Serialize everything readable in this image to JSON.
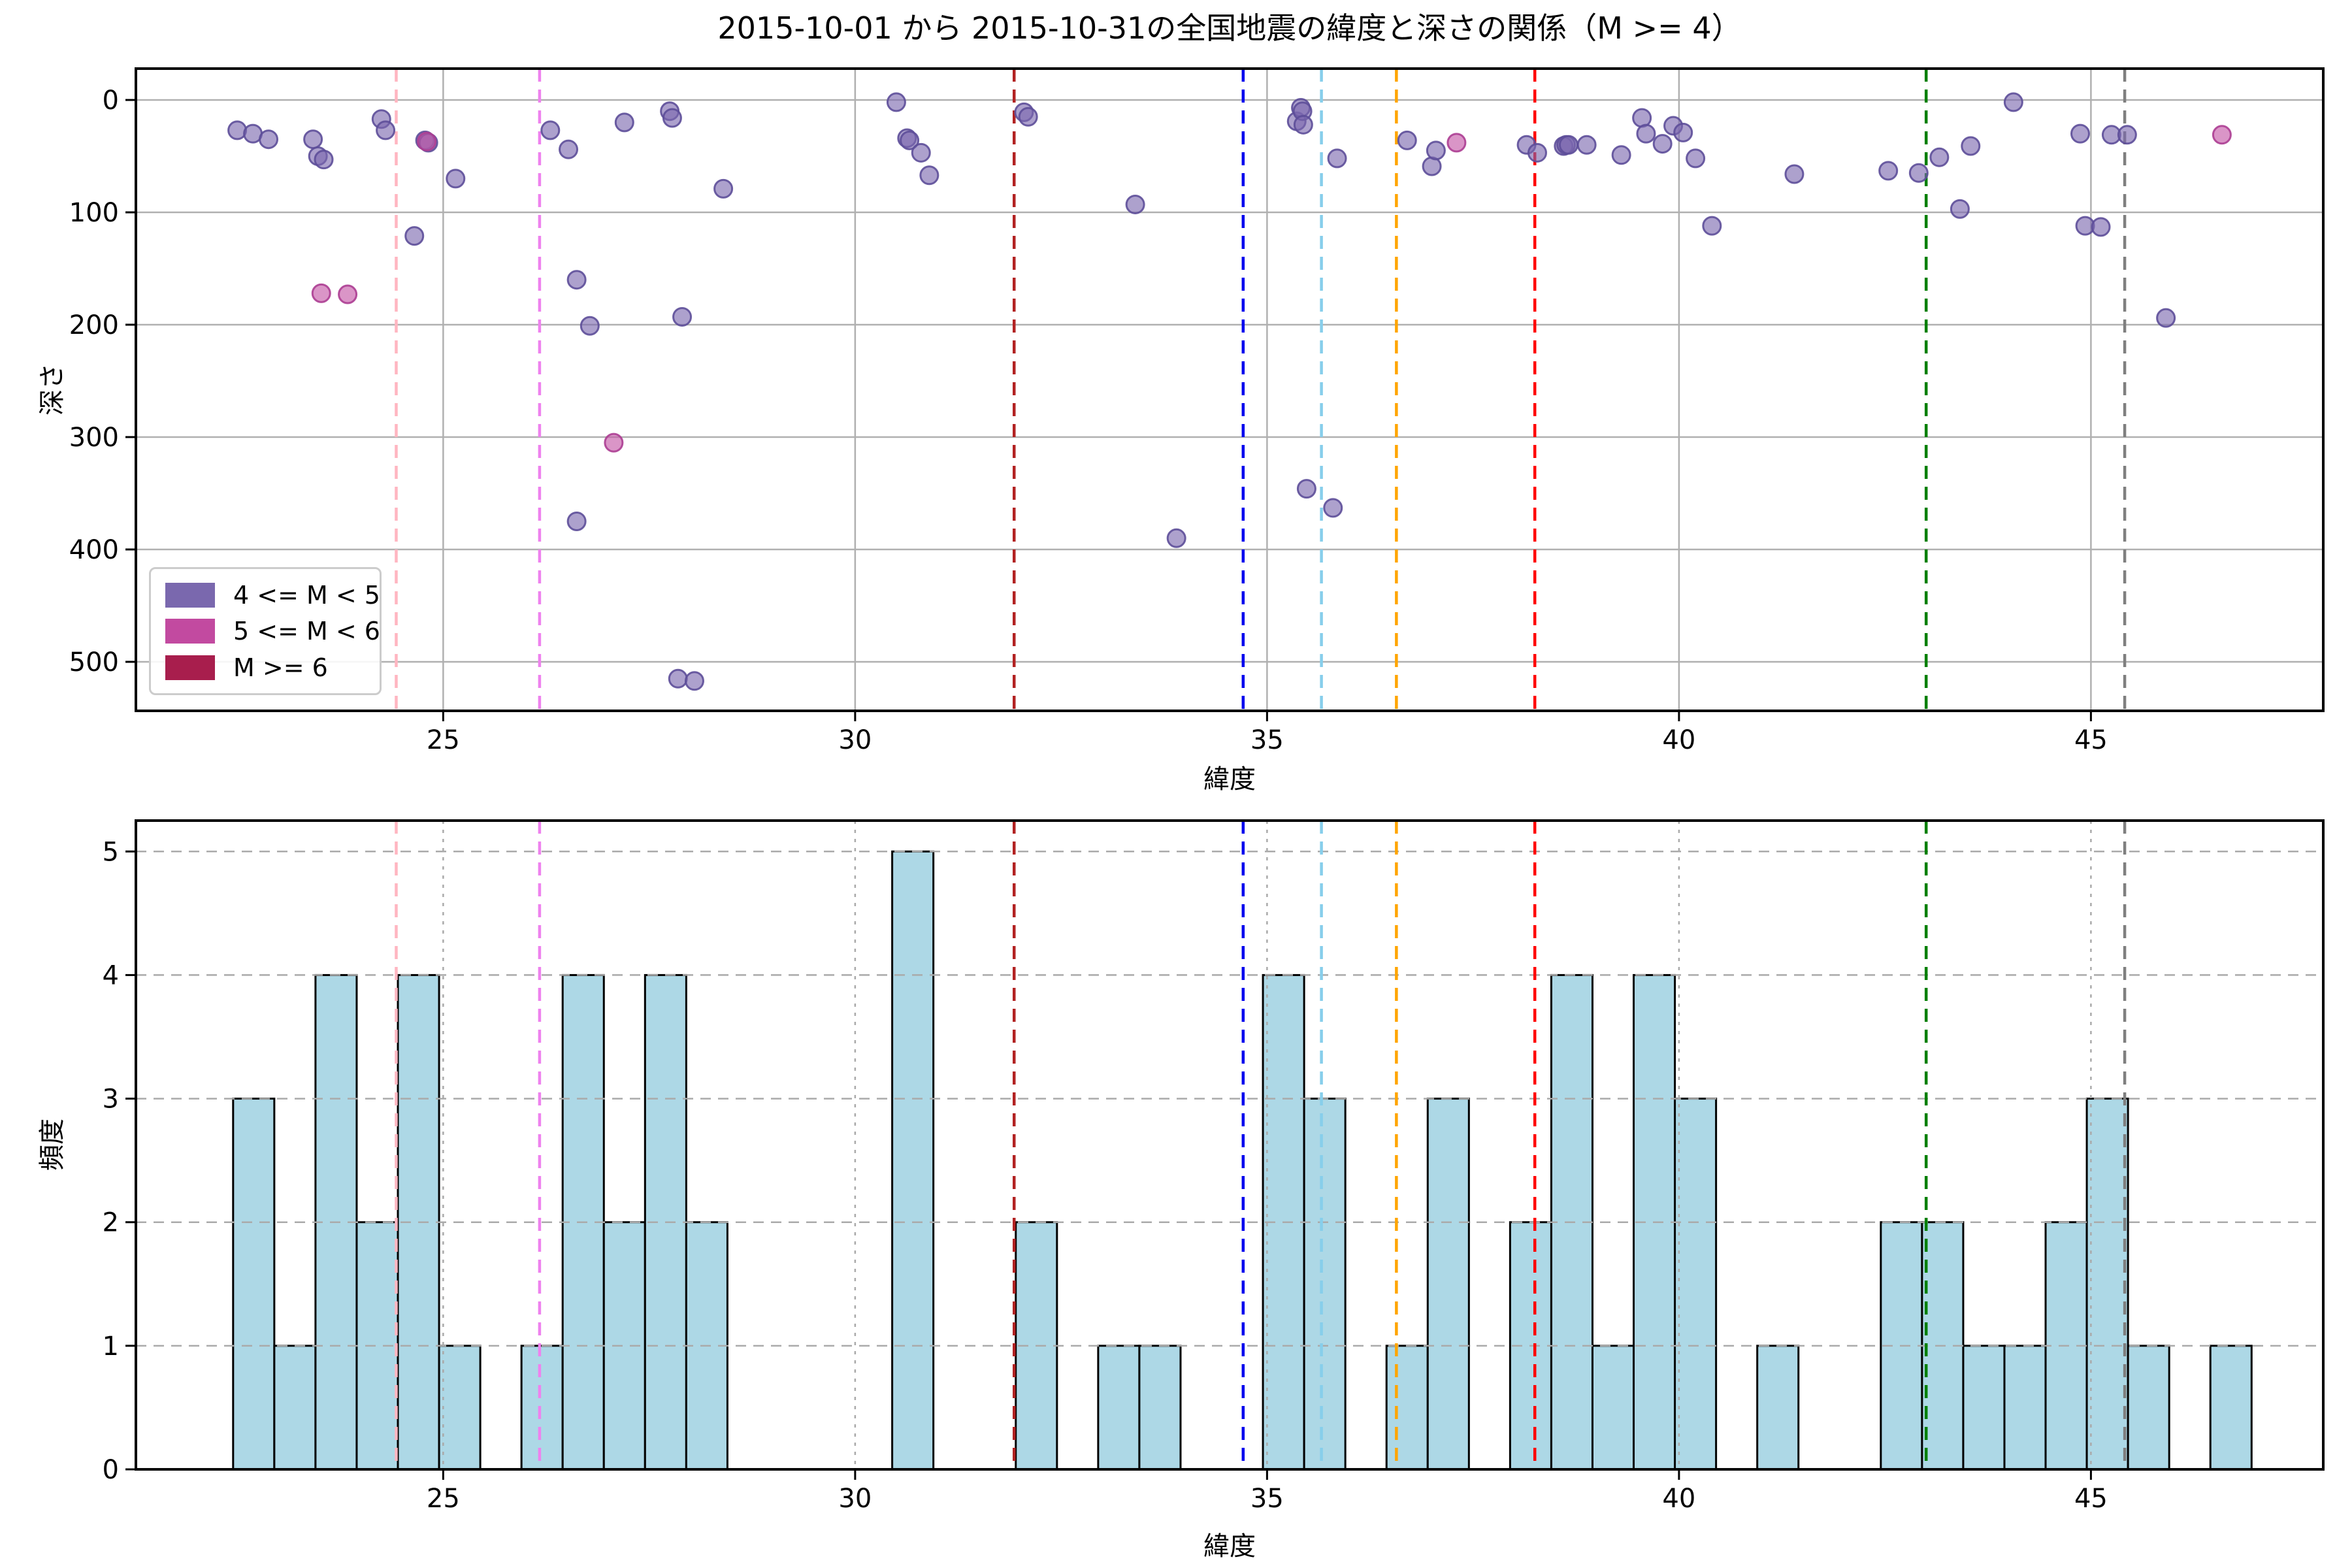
{
  "title": "2015-10-01 から 2015-10-31の全国地震の緯度と深さの関係（M >= 4）",
  "legend": {
    "items": [
      {
        "label": "4 <= M < 5",
        "color": "#7A68AE"
      },
      {
        "label": "5 <= M < 6",
        "color": "#C24AA0"
      },
      {
        "label": "M >= 6",
        "color": "#A81E4D"
      }
    ]
  },
  "colors": {
    "scatter_mag4_fill": "#7A68AE",
    "scatter_mag4_edge": "#5D4E99",
    "scatter_mag5_fill": "#C454A4",
    "scatter_mag5_edge": "#AC3D92",
    "scatter_mag6_fill": "#A81E4D",
    "bar_fill": "#ADD8E6",
    "bar_edge": "#000000",
    "grid": "#B0B0B0",
    "grid_bottom": "#AAAAAA"
  },
  "chart_data": [
    {
      "type": "scatter",
      "title": "2015-10-01 から 2015-10-31の全国地震の緯度と深さの関係（M >= 4）",
      "xlabel": "緯度",
      "ylabel": "深さ",
      "xlim": [
        21.27,
        47.82
      ],
      "ylim": [
        543.6,
        -27.9
      ],
      "y_axis_inverted": true,
      "grid": true,
      "xticks": [
        25,
        30,
        35,
        40,
        45
      ],
      "yticks": [
        0,
        100,
        200,
        300,
        400,
        500
      ],
      "legend_position": "lower left",
      "series": [
        {
          "name": "4 <= M < 5",
          "points": [
            [
              22.5,
              27
            ],
            [
              22.69,
              30
            ],
            [
              22.88,
              35
            ],
            [
              23.42,
              35
            ],
            [
              23.48,
              50
            ],
            [
              23.55,
              53
            ],
            [
              24.25,
              17
            ],
            [
              24.3,
              27
            ],
            [
              24.65,
              121
            ],
            [
              24.78,
              36
            ],
            [
              24.82,
              38
            ],
            [
              25.15,
              70
            ],
            [
              26.3,
              27
            ],
            [
              26.52,
              44
            ],
            [
              26.62,
              160
            ],
            [
              26.62,
              375
            ],
            [
              26.78,
              201
            ],
            [
              27.2,
              20
            ],
            [
              27.75,
              10
            ],
            [
              27.78,
              16
            ],
            [
              27.85,
              515
            ],
            [
              27.9,
              193
            ],
            [
              28.05,
              517
            ],
            [
              28.4,
              79
            ],
            [
              30.5,
              2
            ],
            [
              30.63,
              34
            ],
            [
              30.66,
              36
            ],
            [
              30.8,
              47
            ],
            [
              30.9,
              67
            ],
            [
              32.05,
              11
            ],
            [
              32.1,
              15
            ],
            [
              33.4,
              93
            ],
            [
              33.9,
              390
            ],
            [
              35.36,
              19
            ],
            [
              35.41,
              7
            ],
            [
              35.43,
              10
            ],
            [
              35.44,
              22
            ],
            [
              35.48,
              346
            ],
            [
              35.8,
              363
            ],
            [
              35.85,
              52
            ],
            [
              36.7,
              36
            ],
            [
              37.0,
              59
            ],
            [
              37.05,
              45
            ],
            [
              38.15,
              40
            ],
            [
              38.28,
              47
            ],
            [
              38.6,
              41
            ],
            [
              38.63,
              40
            ],
            [
              38.66,
              40
            ],
            [
              38.88,
              40
            ],
            [
              39.3,
              49
            ],
            [
              39.55,
              16
            ],
            [
              39.6,
              30
            ],
            [
              39.8,
              39
            ],
            [
              39.93,
              23
            ],
            [
              40.05,
              29
            ],
            [
              40.2,
              52
            ],
            [
              40.4,
              112
            ],
            [
              41.4,
              66
            ],
            [
              42.54,
              63
            ],
            [
              42.91,
              65
            ],
            [
              43.16,
              51
            ],
            [
              43.41,
              97
            ],
            [
              43.54,
              41
            ],
            [
              44.06,
              2
            ],
            [
              44.87,
              30
            ],
            [
              44.93,
              112
            ],
            [
              45.12,
              113
            ],
            [
              45.25,
              31
            ],
            [
              45.44,
              31
            ],
            [
              45.91,
              194
            ]
          ]
        },
        {
          "name": "5 <= M < 6",
          "points": [
            [
              23.52,
              172
            ],
            [
              23.84,
              173
            ],
            [
              24.8,
              37
            ],
            [
              27.07,
              305
            ],
            [
              37.3,
              38
            ],
            [
              46.59,
              31
            ]
          ]
        },
        {
          "name": "M >= 6",
          "points": []
        }
      ],
      "vlines": [
        {
          "x": 24.43,
          "color": "#FFB6C1"
        },
        {
          "x": 26.17,
          "color": "#EE82EE"
        },
        {
          "x": 31.93,
          "color": "#B22222"
        },
        {
          "x": 34.71,
          "color": "#0000EE"
        },
        {
          "x": 35.66,
          "color": "#87CEEB"
        },
        {
          "x": 36.57,
          "color": "#FFA500"
        },
        {
          "x": 38.25,
          "color": "#FF0000"
        },
        {
          "x": 43.0,
          "color": "#007F00"
        },
        {
          "x": 45.41,
          "color": "#7F7F7F"
        }
      ]
    },
    {
      "type": "bar",
      "xlabel": "緯度",
      "ylabel": "頻度",
      "xlim": [
        21.27,
        47.82
      ],
      "ylim": [
        0,
        5.25
      ],
      "grid": true,
      "xticks": [
        25,
        30,
        35,
        40,
        45
      ],
      "yticks": [
        0,
        1,
        2,
        3,
        4,
        5
      ],
      "bin_start": 22.45,
      "bin_width": 0.5,
      "counts": [
        3,
        1,
        4,
        2,
        4,
        1,
        0,
        1,
        4,
        2,
        4,
        2,
        0,
        0,
        0,
        0,
        5,
        0,
        0,
        2,
        0,
        1,
        1,
        0,
        0,
        4,
        3,
        0,
        1,
        3,
        0,
        2,
        4,
        1,
        4,
        3,
        0,
        1,
        0,
        0,
        2,
        2,
        1,
        1,
        2,
        3,
        1,
        0,
        1
      ],
      "vlines": [
        {
          "x": 24.43,
          "color": "#FFB6C1"
        },
        {
          "x": 26.17,
          "color": "#EE82EE"
        },
        {
          "x": 31.93,
          "color": "#B22222"
        },
        {
          "x": 34.71,
          "color": "#0000EE"
        },
        {
          "x": 35.66,
          "color": "#87CEEB"
        },
        {
          "x": 36.57,
          "color": "#FFA500"
        },
        {
          "x": 38.25,
          "color": "#FF0000"
        },
        {
          "x": 43.0,
          "color": "#007F00"
        },
        {
          "x": 45.41,
          "color": "#7F7F7F"
        }
      ]
    }
  ]
}
